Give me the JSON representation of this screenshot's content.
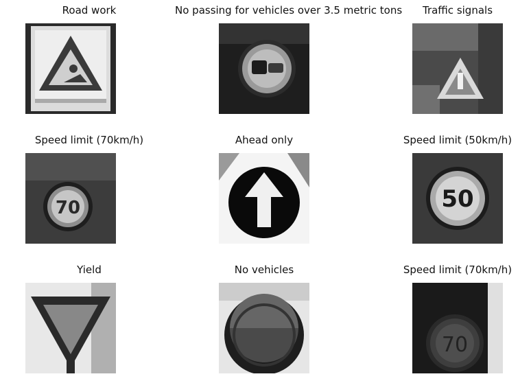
{
  "figure": {
    "panels": [
      {
        "label": "Road work",
        "icon": "road-work-sign-icon"
      },
      {
        "label": "No passing for vehicles over 3.5 metric tons",
        "icon": "no-passing-trucks-sign-icon"
      },
      {
        "label": "Traffic signals",
        "icon": "traffic-signals-sign-icon"
      },
      {
        "label": "Speed limit (70km/h)",
        "icon": "speed-limit-70-sign-icon"
      },
      {
        "label": "Ahead only",
        "icon": "ahead-only-sign-icon"
      },
      {
        "label": "Speed limit (50km/h)",
        "icon": "speed-limit-50-sign-icon"
      },
      {
        "label": "Yield",
        "icon": "yield-sign-icon"
      },
      {
        "label": "No vehicles",
        "icon": "no-vehicles-sign-icon"
      },
      {
        "label": "Speed limit (70km/h)",
        "icon": "speed-limit-70-sign-icon"
      }
    ]
  }
}
